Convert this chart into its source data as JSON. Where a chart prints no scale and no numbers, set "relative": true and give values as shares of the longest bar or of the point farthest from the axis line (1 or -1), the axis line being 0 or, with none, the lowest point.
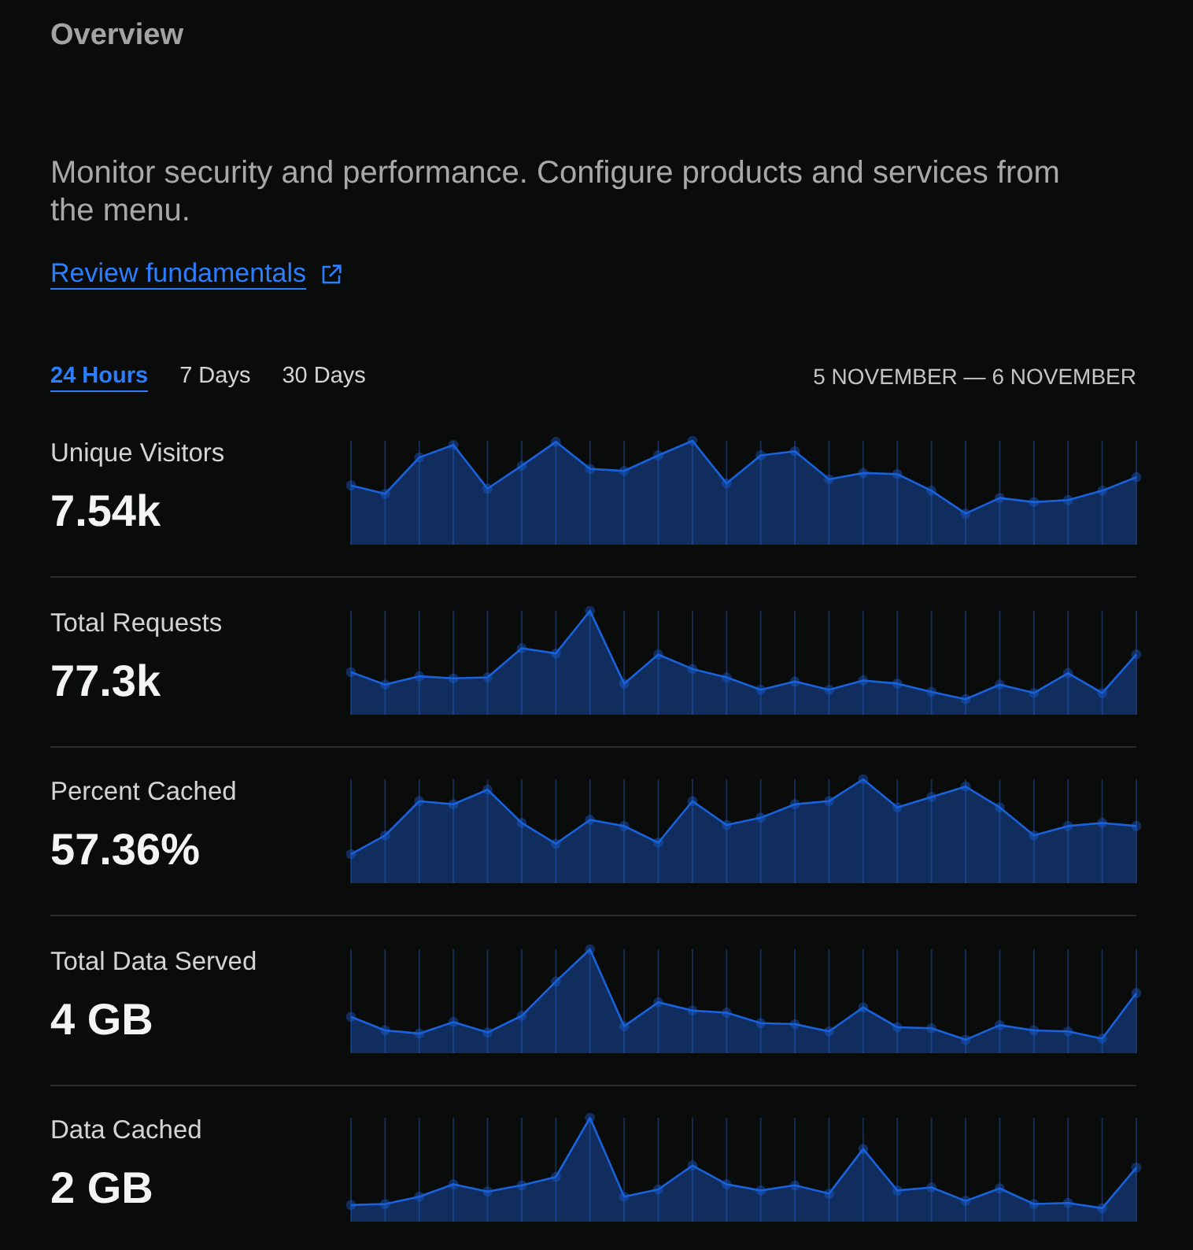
{
  "chart_data": [
    {
      "type": "other",
      "title": "Overview",
      "annotations": [
        "Monitor security and performance. Configure products and services from the menu.",
        "Review fundamentals",
        "24 Hours",
        "7 Days",
        "30 Days",
        "5 NOVEMBER — 6 NOVEMBER"
      ]
    },
    {
      "type": "area",
      "title": "Unique Visitors",
      "subtitle": "7.54k",
      "relative": true,
      "color": "#1a62db",
      "grid": "x",
      "marker": "circle",
      "categories": [
        null,
        null,
        null,
        null,
        null,
        null,
        null,
        null,
        null,
        null,
        null,
        null,
        null,
        null,
        null,
        null,
        null,
        null,
        null,
        null,
        null,
        null,
        null,
        null
      ],
      "values": [
        0.57,
        0.49,
        0.84,
        0.96,
        0.54,
        0.76,
        0.99,
        0.73,
        0.71,
        0.86,
        1,
        0.59,
        0.86,
        0.9,
        0.63,
        0.69,
        0.68,
        0.52,
        0.3,
        0.45,
        0.41,
        0.43,
        0.52,
        0.65
      ]
    },
    {
      "type": "area",
      "title": "Total Requests",
      "subtitle": "77.3k",
      "relative": true,
      "color": "#1a62db",
      "grid": "x",
      "marker": "circle",
      "categories": [
        null,
        null,
        null,
        null,
        null,
        null,
        null,
        null,
        null,
        null,
        null,
        null,
        null,
        null,
        null,
        null,
        null,
        null,
        null,
        null,
        null,
        null,
        null,
        null
      ],
      "values": [
        0.41,
        0.29,
        0.37,
        0.35,
        0.36,
        0.64,
        0.59,
        1,
        0.3,
        0.58,
        0.44,
        0.36,
        0.24,
        0.32,
        0.24,
        0.33,
        0.3,
        0.22,
        0.15,
        0.29,
        0.21,
        0.4,
        0.21,
        0.58
      ]
    },
    {
      "type": "area",
      "title": "Percent Cached",
      "subtitle": "57.36%",
      "relative": true,
      "color": "#1a62db",
      "grid": "x",
      "marker": "circle",
      "categories": [
        null,
        null,
        null,
        null,
        null,
        null,
        null,
        null,
        null,
        null,
        null,
        null,
        null,
        null,
        null,
        null,
        null,
        null,
        null,
        null,
        null,
        null,
        null,
        null
      ],
      "values": [
        0.28,
        0.46,
        0.79,
        0.76,
        0.9,
        0.58,
        0.38,
        0.61,
        0.55,
        0.39,
        0.79,
        0.56,
        0.63,
        0.76,
        0.79,
        1,
        0.73,
        0.83,
        0.93,
        0.73,
        0.46,
        0.55,
        0.58,
        0.55
      ]
    },
    {
      "type": "area",
      "title": "Total Data Served",
      "subtitle": "4 GB",
      "relative": true,
      "color": "#1a62db",
      "grid": "x",
      "marker": "circle",
      "categories": [
        null,
        null,
        null,
        null,
        null,
        null,
        null,
        null,
        null,
        null,
        null,
        null,
        null,
        null,
        null,
        null,
        null,
        null,
        null,
        null,
        null,
        null,
        null,
        null
      ],
      "values": [
        0.35,
        0.22,
        0.19,
        0.3,
        0.2,
        0.36,
        0.69,
        1,
        0.26,
        0.49,
        0.41,
        0.39,
        0.29,
        0.28,
        0.21,
        0.44,
        0.25,
        0.24,
        0.13,
        0.27,
        0.22,
        0.21,
        0.14,
        0.58
      ]
    },
    {
      "type": "area",
      "title": "Data Cached",
      "subtitle": "2 GB",
      "relative": true,
      "color": "#1a62db",
      "grid": "x",
      "marker": "circle",
      "categories": [
        null,
        null,
        null,
        null,
        null,
        null,
        null,
        null,
        null,
        null,
        null,
        null,
        null,
        null,
        null,
        null,
        null,
        null,
        null,
        null,
        null,
        null,
        null,
        null
      ],
      "values": [
        0.16,
        0.17,
        0.24,
        0.36,
        0.29,
        0.35,
        0.43,
        1,
        0.24,
        0.31,
        0.54,
        0.36,
        0.3,
        0.35,
        0.27,
        0.7,
        0.3,
        0.33,
        0.2,
        0.32,
        0.17,
        0.18,
        0.13,
        0.52
      ]
    }
  ]
}
